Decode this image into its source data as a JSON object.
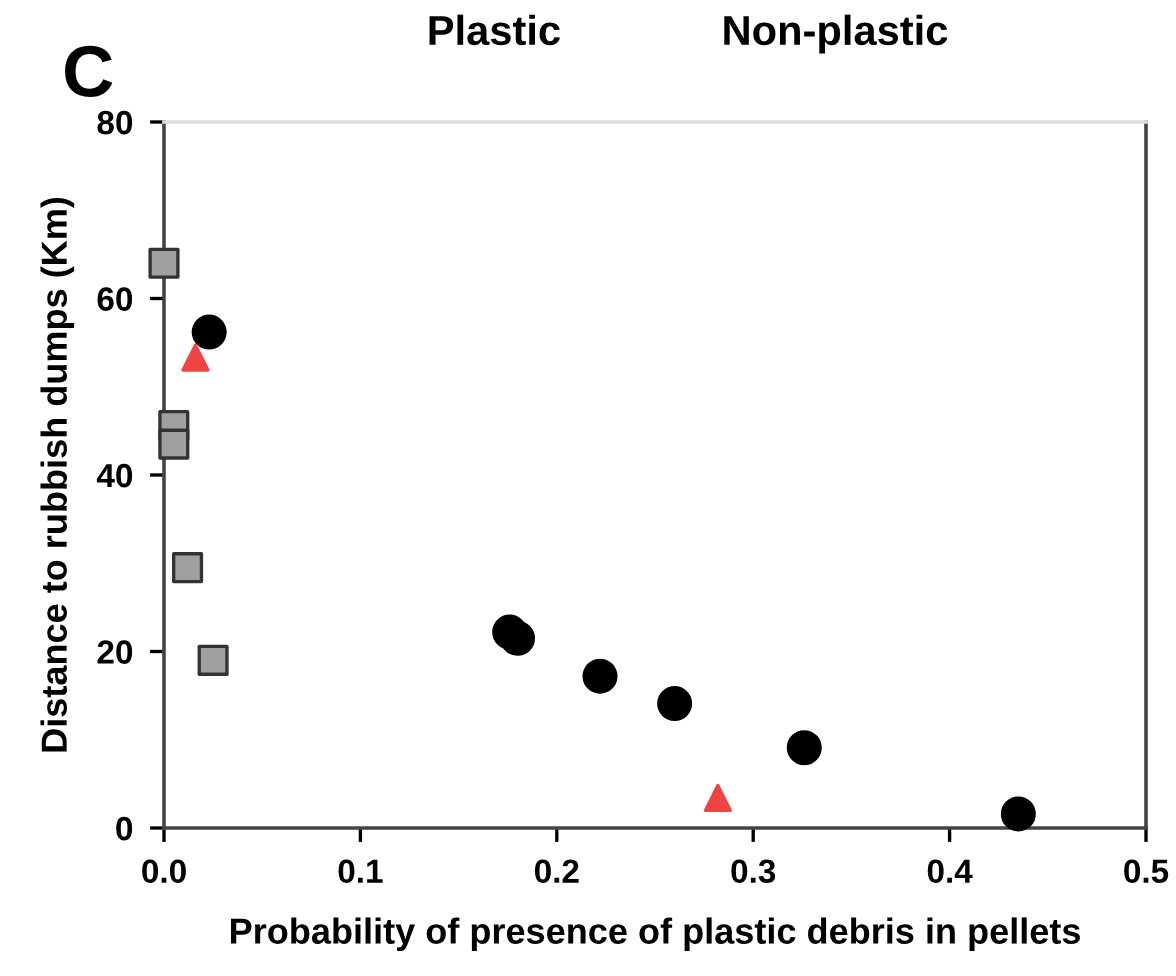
{
  "chart_data": {
    "type": "scatter",
    "xlabel": "Probability of presence of plastic debris in pellets",
    "ylabel": "Distance to rubbish dumps (Km)",
    "annotations": [
      "C",
      "Plastic",
      "Non-plastic"
    ],
    "series": [
      {
        "color": "#a0a0a0",
        "marker": "square",
        "x": [
          0.0,
          0.005,
          0.005,
          0.012,
          0.025
        ],
        "values": [
          64,
          45.6,
          43.5,
          29.5,
          19
        ]
      },
      {
        "color": "#000000",
        "marker": "circle",
        "x": [
          0.023,
          0.176,
          0.18,
          0.222,
          0.26,
          0.326,
          0.435
        ],
        "values": [
          56.2,
          22.2,
          21.5,
          17.2,
          14.1,
          9.1,
          1.6
        ]
      },
      {
        "color": "#ee4444",
        "marker": "triangle",
        "x": [
          0.016,
          0.282
        ],
        "values": [
          53.3,
          3.4
        ]
      }
    ],
    "xlim": [
      0,
      0.5
    ],
    "ylim": [
      0,
      80
    ],
    "xticks": [
      {
        "value": 0,
        "label": "0.0"
      },
      0.1,
      0.2,
      0.3,
      0.4,
      0.5
    ],
    "yticks": [
      0,
      20,
      40,
      60,
      80
    ],
    "grid": false,
    "legend": false
  }
}
